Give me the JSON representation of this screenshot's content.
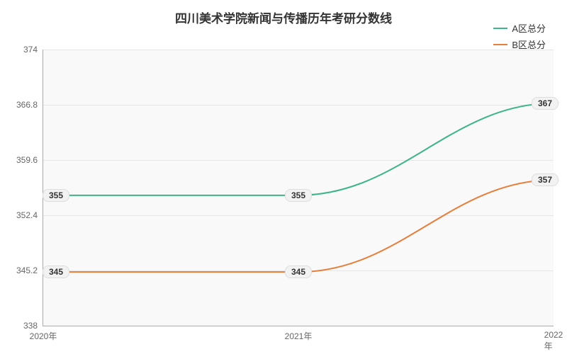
{
  "chart": {
    "type": "line",
    "title": "四川美术学院新闻与传播历年考研分数线",
    "title_fontsize": 17,
    "background_color": "#ffffff",
    "plot_background": "#f9f9f9",
    "grid_color": "#e6e6e6",
    "axis_color": "#aaaaaa",
    "tick_label_color": "#666666",
    "tick_fontsize": 12,
    "data_label_fontsize": 12,
    "series": [
      {
        "name": "A区总分",
        "color": "#3eb489",
        "line_width": 2,
        "values": [
          355,
          355,
          367
        ],
        "smooth": true
      },
      {
        "name": "B区总分",
        "color": "#e67e3c",
        "line_width": 2,
        "values": [
          345,
          345,
          357
        ],
        "smooth": true
      }
    ],
    "x_categories": [
      "2020年",
      "2021年",
      "2022年"
    ],
    "ylim": [
      338,
      374
    ],
    "ytick_step": 7.2,
    "y_ticks": [
      "338",
      "345.2",
      "352.4",
      "359.6",
      "366.8",
      "374"
    ],
    "legend": {
      "position": "top-right",
      "items": [
        "A区总分",
        "B区总分"
      ]
    }
  }
}
